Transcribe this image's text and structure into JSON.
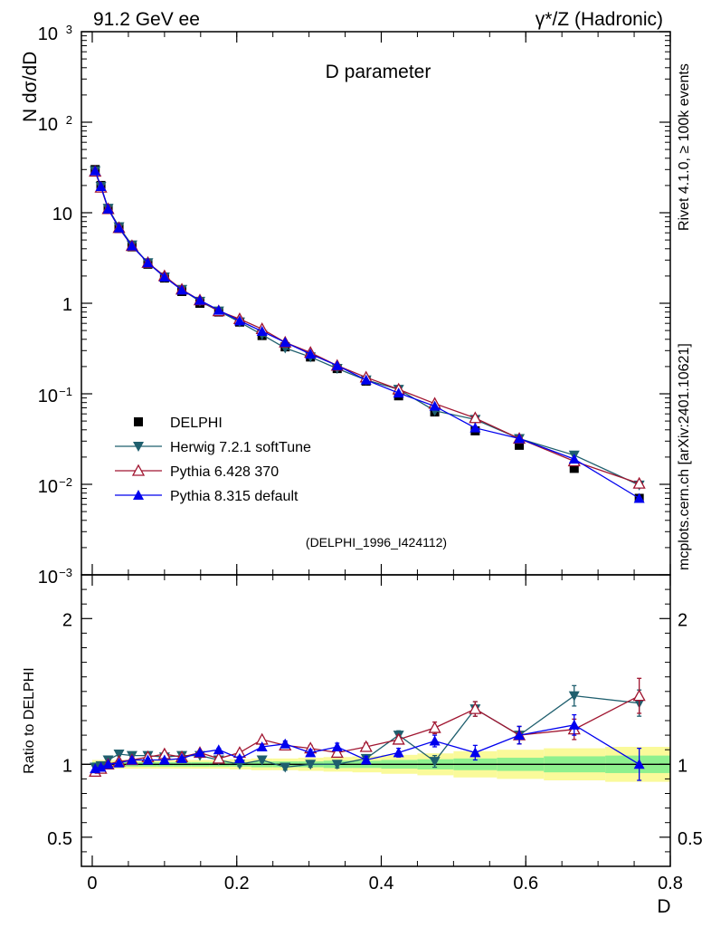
{
  "header": {
    "left": "91.2 GeV ee",
    "right": "γ*/Z (Hadronic)"
  },
  "side_text": {
    "rivet": "Rivet 4.1.0, ≥ 100k events",
    "mcplots": "mcplots.cern.ch [arXiv:2401.10621]"
  },
  "colors": {
    "delphi": "#000000",
    "herwig": "#1f5f6e",
    "pythia6": "#a01530",
    "pythia8": "#0000ee",
    "band_inner": "#8ef08e",
    "band_outer": "#fafa9a"
  },
  "chart_data": [
    {
      "type": "scatter",
      "panel": "main",
      "title": "D parameter",
      "ylabel": "N  dσ/dD",
      "xlabel": "D",
      "yscale": "log",
      "xlim": [
        -0.015,
        0.8
      ],
      "ylim": [
        0.001,
        1000
      ],
      "yticks": [
        {
          "v": 0.001,
          "base": "10",
          "exp": "−3"
        },
        {
          "v": 0.01,
          "base": "10",
          "exp": "−2"
        },
        {
          "v": 0.1,
          "base": "10",
          "exp": "−1"
        },
        {
          "v": 1,
          "base": "1",
          "exp": ""
        },
        {
          "v": 10,
          "base": "10",
          "exp": ""
        },
        {
          "v": 100,
          "base": "10",
          "exp": "2"
        },
        {
          "v": 1000,
          "base": "10",
          "exp": "3"
        }
      ],
      "annotation": "(DELPHI_1996_I424112)",
      "legend": [
        "DELPHI",
        "Herwig 7.2.1 softTune",
        "Pythia 6.428 370",
        "Pythia 8.315 default"
      ],
      "legend_position": "lower-left",
      "x": [
        0.004,
        0.012,
        0.022,
        0.037,
        0.055,
        0.077,
        0.1,
        0.124,
        0.149,
        0.175,
        0.204,
        0.235,
        0.267,
        0.302,
        0.339,
        0.379,
        0.424,
        0.474,
        0.53,
        0.591,
        0.667,
        0.757
      ],
      "series": [
        {
          "name": "DELPHI",
          "key": "delphi",
          "marker": "square",
          "values": [
            30,
            20,
            11,
            6.7,
            4.2,
            2.7,
            1.9,
            1.35,
            1.0,
            0.8,
            0.62,
            0.44,
            0.33,
            0.255,
            0.19,
            0.138,
            0.095,
            0.063,
            0.039,
            0.027,
            0.015,
            0.007
          ]
        },
        {
          "name": "Herwig 7.2.1 softTune",
          "key": "herwig",
          "marker": "tri-down",
          "values": [
            29,
            19.5,
            11.2,
            7.0,
            4.4,
            2.8,
            1.95,
            1.42,
            1.05,
            0.82,
            0.62,
            0.45,
            0.32,
            0.255,
            0.19,
            0.142,
            0.112,
            0.065,
            0.052,
            0.032,
            0.021,
            0.0098
          ]
        },
        {
          "name": "Pythia 6.428 370",
          "key": "pythia6",
          "marker": "tri-up-open",
          "values": [
            28.5,
            19,
            11,
            6.8,
            4.3,
            2.8,
            2.0,
            1.42,
            1.08,
            0.82,
            0.67,
            0.52,
            0.37,
            0.285,
            0.205,
            0.152,
            0.112,
            0.078,
            0.054,
            0.032,
            0.018,
            0.0102
          ]
        },
        {
          "name": "Pythia 8.315 default",
          "key": "pythia8",
          "marker": "tri-up",
          "values": [
            29,
            19.5,
            11,
            6.8,
            4.3,
            2.8,
            1.95,
            1.4,
            1.08,
            0.84,
            0.64,
            0.49,
            0.37,
            0.275,
            0.205,
            0.142,
            0.102,
            0.073,
            0.042,
            0.032,
            0.019,
            0.007
          ]
        }
      ]
    },
    {
      "type": "scatter",
      "panel": "ratio",
      "ylabel": "Ratio to DELPHI",
      "xlabel": "D",
      "xlim": [
        -0.015,
        0.8
      ],
      "ylim": [
        0.3,
        2.3
      ],
      "yticks": [
        0.5,
        1,
        2
      ],
      "ytick_labels": [
        "0.5",
        "1",
        "2"
      ],
      "xticks": [
        0,
        0.2,
        0.4,
        0.6,
        0.8
      ],
      "xtick_labels": [
        "0",
        "0.2",
        "0.4",
        "0.6",
        "0.8"
      ],
      "bin_edges": [
        0,
        0.008,
        0.016,
        0.03,
        0.045,
        0.065,
        0.09,
        0.112,
        0.137,
        0.162,
        0.19,
        0.22,
        0.25,
        0.285,
        0.32,
        0.36,
        0.4,
        0.45,
        0.5,
        0.56,
        0.625,
        0.71,
        0.8
      ],
      "band_inner": [
        0.015,
        0.015,
        0.015,
        0.015,
        0.015,
        0.015,
        0.015,
        0.015,
        0.015,
        0.015,
        0.015,
        0.02,
        0.02,
        0.02,
        0.025,
        0.025,
        0.03,
        0.035,
        0.04,
        0.045,
        0.055,
        0.06
      ],
      "band_outer": [
        0.03,
        0.03,
        0.03,
        0.03,
        0.03,
        0.03,
        0.03,
        0.03,
        0.03,
        0.03,
        0.035,
        0.04,
        0.04,
        0.045,
        0.05,
        0.055,
        0.065,
        0.075,
        0.09,
        0.1,
        0.11,
        0.12
      ],
      "series": [
        {
          "name": "Herwig 7.2.1 softTune",
          "key": "herwig",
          "marker": "tri-down",
          "values": [
            0.98,
            0.99,
            1.03,
            1.07,
            1.06,
            1.06,
            1.05,
            1.06,
            1.06,
            1.03,
            1.0,
            1.03,
            0.98,
            1.0,
            1.0,
            1.04,
            1.2,
            1.02,
            1.38,
            1.2,
            1.47,
            1.42
          ],
          "errors": [
            0.01,
            0.01,
            0.01,
            0.01,
            0.01,
            0.01,
            0.01,
            0.01,
            0.01,
            0.01,
            0.015,
            0.015,
            0.02,
            0.02,
            0.025,
            0.025,
            0.03,
            0.04,
            0.05,
            0.06,
            0.07,
            0.09
          ]
        },
        {
          "name": "Pythia 6.428 370",
          "key": "pythia6",
          "marker": "tri-up-open",
          "values": [
            0.95,
            0.97,
            1.0,
            1.02,
            1.03,
            1.05,
            1.07,
            1.05,
            1.08,
            1.04,
            1.08,
            1.17,
            1.13,
            1.11,
            1.08,
            1.12,
            1.17,
            1.25,
            1.38,
            1.2,
            1.24,
            1.47
          ],
          "errors": [
            0.01,
            0.01,
            0.01,
            0.01,
            0.01,
            0.01,
            0.01,
            0.01,
            0.01,
            0.01,
            0.015,
            0.015,
            0.02,
            0.02,
            0.025,
            0.025,
            0.03,
            0.04,
            0.05,
            0.06,
            0.07,
            0.12
          ]
        },
        {
          "name": "Pythia 8.315 default",
          "key": "pythia8",
          "marker": "tri-up",
          "values": [
            0.97,
            0.98,
            1.0,
            1.01,
            1.03,
            1.03,
            1.03,
            1.04,
            1.08,
            1.1,
            1.04,
            1.12,
            1.14,
            1.08,
            1.12,
            1.03,
            1.08,
            1.16,
            1.08,
            1.2,
            1.27,
            1.0
          ],
          "errors": [
            0.01,
            0.01,
            0.01,
            0.01,
            0.01,
            0.01,
            0.01,
            0.01,
            0.01,
            0.01,
            0.015,
            0.015,
            0.02,
            0.02,
            0.025,
            0.025,
            0.03,
            0.04,
            0.05,
            0.06,
            0.07,
            0.11
          ]
        }
      ]
    }
  ]
}
